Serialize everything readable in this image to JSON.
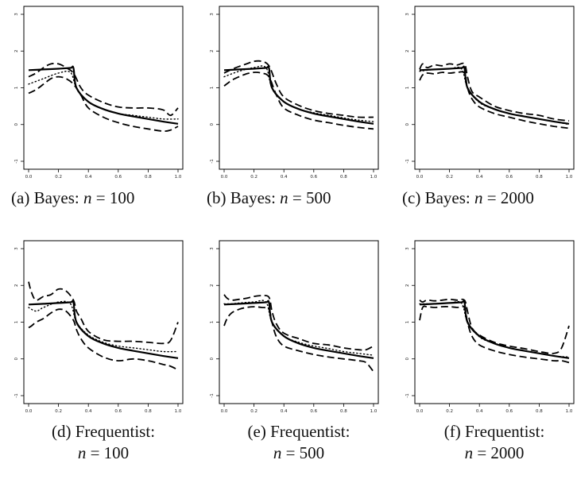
{
  "chart_data": [
    {
      "type": "line",
      "caption_label": "(a)",
      "caption_method": "Bayes:",
      "caption_n": "100",
      "xlim": [
        0,
        1
      ],
      "ylim": [
        -1,
        3
      ],
      "xticks": [
        "0.0",
        "0.2",
        "0.4",
        "0.6",
        "0.8",
        "1.0"
      ],
      "yticks": [
        "-1",
        "0",
        "1",
        "2",
        "3"
      ],
      "series": [
        {
          "style": "solid",
          "x": [
            0,
            0.1,
            0.2,
            0.28,
            0.3,
            0.32,
            0.4,
            0.5,
            0.6,
            0.7,
            0.8,
            0.9,
            1.0
          ],
          "y": [
            1.48,
            1.5,
            1.52,
            1.54,
            1.54,
            1.0,
            0.62,
            0.42,
            0.3,
            0.22,
            0.15,
            0.08,
            0.02
          ]
        },
        {
          "style": "dotted",
          "x": [
            0,
            0.1,
            0.2,
            0.28,
            0.32,
            0.4,
            0.5,
            0.6,
            0.7,
            0.8,
            0.9,
            1.0
          ],
          "y": [
            1.1,
            1.25,
            1.4,
            1.42,
            1.0,
            0.62,
            0.42,
            0.3,
            0.25,
            0.2,
            0.15,
            0.15
          ]
        },
        {
          "style": "dashed",
          "x": [
            0,
            0.05,
            0.1,
            0.15,
            0.2,
            0.25,
            0.3,
            0.35,
            0.4,
            0.5,
            0.6,
            0.7,
            0.8,
            0.9,
            0.95,
            1.0
          ],
          "y": [
            1.3,
            1.4,
            1.55,
            1.65,
            1.65,
            1.55,
            1.4,
            1.0,
            0.8,
            0.6,
            0.48,
            0.45,
            0.45,
            0.4,
            0.25,
            0.45
          ]
        },
        {
          "style": "dashed",
          "x": [
            0,
            0.05,
            0.1,
            0.15,
            0.2,
            0.25,
            0.3,
            0.35,
            0.4,
            0.5,
            0.6,
            0.7,
            0.8,
            0.9,
            0.95,
            1.0
          ],
          "y": [
            0.85,
            0.95,
            1.1,
            1.25,
            1.3,
            1.25,
            1.1,
            0.8,
            0.45,
            0.2,
            0.05,
            -0.05,
            -0.12,
            -0.18,
            -0.15,
            -0.05
          ]
        }
      ]
    },
    {
      "type": "line",
      "caption_label": "(b)",
      "caption_method": "Bayes:",
      "caption_n": "500",
      "xlim": [
        0,
        1
      ],
      "ylim": [
        -1,
        3
      ],
      "xticks": [
        "0.0",
        "0.2",
        "0.4",
        "0.6",
        "0.8",
        "1.0"
      ],
      "yticks": [
        "-1",
        "0",
        "1",
        "2",
        "3"
      ],
      "series": [
        {
          "style": "solid",
          "x": [
            0,
            0.1,
            0.2,
            0.28,
            0.3,
            0.32,
            0.4,
            0.5,
            0.6,
            0.7,
            0.8,
            0.9,
            1.0
          ],
          "y": [
            1.48,
            1.5,
            1.52,
            1.54,
            1.54,
            1.0,
            0.62,
            0.42,
            0.3,
            0.22,
            0.15,
            0.08,
            0.02
          ]
        },
        {
          "style": "dotted",
          "x": [
            0,
            0.1,
            0.2,
            0.28,
            0.32,
            0.4,
            0.5,
            0.6,
            0.7,
            0.8,
            0.9,
            1.0
          ],
          "y": [
            1.3,
            1.45,
            1.55,
            1.55,
            1.0,
            0.62,
            0.42,
            0.32,
            0.25,
            0.18,
            0.12,
            0.08
          ]
        },
        {
          "style": "dashed",
          "x": [
            0,
            0.05,
            0.1,
            0.15,
            0.2,
            0.25,
            0.3,
            0.35,
            0.4,
            0.5,
            0.6,
            0.7,
            0.8,
            0.9,
            1.0
          ],
          "y": [
            1.4,
            1.5,
            1.58,
            1.65,
            1.72,
            1.72,
            1.6,
            1.1,
            0.75,
            0.52,
            0.38,
            0.3,
            0.25,
            0.2,
            0.2
          ]
        },
        {
          "style": "dashed",
          "x": [
            0,
            0.05,
            0.1,
            0.15,
            0.2,
            0.25,
            0.3,
            0.35,
            0.4,
            0.5,
            0.6,
            0.7,
            0.8,
            0.9,
            1.0
          ],
          "y": [
            1.05,
            1.2,
            1.3,
            1.38,
            1.42,
            1.4,
            1.3,
            0.8,
            0.45,
            0.25,
            0.12,
            0.05,
            -0.02,
            -0.08,
            -0.12
          ]
        }
      ]
    },
    {
      "type": "line",
      "caption_label": "(c)",
      "caption_method": "Bayes:",
      "caption_n": "2000",
      "xlim": [
        0,
        1
      ],
      "ylim": [
        -1,
        3
      ],
      "xticks": [
        "0.0",
        "0.2",
        "0.4",
        "0.6",
        "0.8",
        "1.0"
      ],
      "yticks": [
        "-1",
        "0",
        "1",
        "2",
        "3"
      ],
      "series": [
        {
          "style": "solid",
          "x": [
            0,
            0.1,
            0.2,
            0.28,
            0.3,
            0.32,
            0.4,
            0.5,
            0.6,
            0.7,
            0.8,
            0.9,
            1.0
          ],
          "y": [
            1.48,
            1.5,
            1.52,
            1.54,
            1.54,
            1.0,
            0.62,
            0.42,
            0.3,
            0.22,
            0.15,
            0.08,
            0.02
          ]
        },
        {
          "style": "dotted",
          "x": [
            0,
            0.1,
            0.2,
            0.28,
            0.32,
            0.4,
            0.5,
            0.6,
            0.7,
            0.8,
            0.9,
            1.0
          ],
          "y": [
            1.45,
            1.5,
            1.52,
            1.52,
            1.0,
            0.6,
            0.42,
            0.3,
            0.22,
            0.15,
            0.08,
            0.0
          ]
        },
        {
          "style": "dashed",
          "x": [
            0,
            0.02,
            0.05,
            0.1,
            0.15,
            0.2,
            0.25,
            0.3,
            0.32,
            0.35,
            0.4,
            0.5,
            0.6,
            0.7,
            0.8,
            0.9,
            1.0
          ],
          "y": [
            1.5,
            1.65,
            1.55,
            1.62,
            1.6,
            1.65,
            1.62,
            1.65,
            1.3,
            0.9,
            0.75,
            0.5,
            0.38,
            0.3,
            0.25,
            0.15,
            0.1
          ]
        },
        {
          "style": "dashed",
          "x": [
            0,
            0.02,
            0.05,
            0.1,
            0.15,
            0.2,
            0.25,
            0.3,
            0.32,
            0.35,
            0.4,
            0.5,
            0.6,
            0.7,
            0.8,
            0.9,
            1.0
          ],
          "y": [
            1.2,
            1.35,
            1.4,
            1.38,
            1.42,
            1.4,
            1.42,
            1.4,
            1.0,
            0.7,
            0.48,
            0.3,
            0.2,
            0.1,
            0.02,
            -0.05,
            -0.1
          ]
        }
      ]
    },
    {
      "type": "line",
      "caption_label": "(d)",
      "caption_method": "Frequentist:",
      "caption_n": "100",
      "xlim": [
        0,
        1
      ],
      "ylim": [
        -1,
        3
      ],
      "xticks": [
        "0.0",
        "0.2",
        "0.4",
        "0.6",
        "0.8",
        "1.0"
      ],
      "yticks": [
        "-1",
        "0",
        "1",
        "2",
        "3"
      ],
      "series": [
        {
          "style": "solid",
          "x": [
            0,
            0.1,
            0.2,
            0.28,
            0.3,
            0.32,
            0.4,
            0.5,
            0.6,
            0.7,
            0.8,
            0.9,
            1.0
          ],
          "y": [
            1.48,
            1.5,
            1.52,
            1.54,
            1.54,
            1.0,
            0.62,
            0.42,
            0.3,
            0.22,
            0.15,
            0.08,
            0.02
          ]
        },
        {
          "style": "dotted",
          "x": [
            0,
            0.05,
            0.1,
            0.2,
            0.28,
            0.32,
            0.4,
            0.5,
            0.6,
            0.7,
            0.8,
            0.9,
            1.0
          ],
          "y": [
            1.4,
            1.3,
            1.4,
            1.55,
            1.5,
            1.0,
            0.65,
            0.45,
            0.35,
            0.3,
            0.25,
            0.2,
            0.2
          ]
        },
        {
          "style": "dashed",
          "x": [
            0,
            0.02,
            0.05,
            0.1,
            0.15,
            0.2,
            0.25,
            0.3,
            0.32,
            0.35,
            0.4,
            0.5,
            0.6,
            0.7,
            0.8,
            0.9,
            0.95,
            1.0
          ],
          "y": [
            2.1,
            1.8,
            1.6,
            1.7,
            1.75,
            1.9,
            1.85,
            1.6,
            1.3,
            1.1,
            0.75,
            0.52,
            0.48,
            0.48,
            0.45,
            0.42,
            0.5,
            1.0
          ]
        },
        {
          "style": "dashed",
          "x": [
            0,
            0.02,
            0.05,
            0.1,
            0.15,
            0.2,
            0.25,
            0.3,
            0.32,
            0.35,
            0.4,
            0.5,
            0.6,
            0.7,
            0.8,
            0.9,
            0.95,
            1.0
          ],
          "y": [
            0.85,
            0.9,
            1.0,
            1.1,
            1.25,
            1.35,
            1.3,
            1.05,
            0.8,
            0.55,
            0.3,
            0.05,
            -0.05,
            0.0,
            -0.05,
            -0.15,
            -0.2,
            -0.3
          ]
        }
      ]
    },
    {
      "type": "line",
      "caption_label": "(e)",
      "caption_method": "Frequentist:",
      "caption_n": "500",
      "xlim": [
        0,
        1
      ],
      "ylim": [
        -1,
        3
      ],
      "xticks": [
        "0.0",
        "0.2",
        "0.4",
        "0.6",
        "0.8",
        "1.0"
      ],
      "yticks": [
        "-1",
        "0",
        "1",
        "2",
        "3"
      ],
      "series": [
        {
          "style": "solid",
          "x": [
            0,
            0.1,
            0.2,
            0.28,
            0.3,
            0.32,
            0.4,
            0.5,
            0.6,
            0.7,
            0.8,
            0.9,
            1.0
          ],
          "y": [
            1.48,
            1.5,
            1.52,
            1.54,
            1.54,
            1.0,
            0.62,
            0.42,
            0.3,
            0.22,
            0.15,
            0.08,
            0.02
          ]
        },
        {
          "style": "dotted",
          "x": [
            0,
            0.05,
            0.1,
            0.2,
            0.28,
            0.32,
            0.4,
            0.5,
            0.6,
            0.7,
            0.8,
            0.9,
            1.0
          ],
          "y": [
            1.5,
            1.5,
            1.52,
            1.55,
            1.55,
            1.0,
            0.62,
            0.45,
            0.35,
            0.28,
            0.2,
            0.15,
            0.1
          ]
        },
        {
          "style": "dashed",
          "x": [
            0,
            0.02,
            0.05,
            0.1,
            0.15,
            0.2,
            0.25,
            0.3,
            0.32,
            0.35,
            0.4,
            0.5,
            0.6,
            0.7,
            0.8,
            0.9,
            0.95,
            1.0
          ],
          "y": [
            1.75,
            1.65,
            1.6,
            1.62,
            1.65,
            1.7,
            1.72,
            1.68,
            1.3,
            0.95,
            0.7,
            0.55,
            0.42,
            0.38,
            0.3,
            0.25,
            0.25,
            0.35
          ]
        },
        {
          "style": "dashed",
          "x": [
            0,
            0.02,
            0.05,
            0.1,
            0.15,
            0.2,
            0.25,
            0.3,
            0.32,
            0.35,
            0.4,
            0.5,
            0.6,
            0.7,
            0.8,
            0.9,
            0.95,
            1.0
          ],
          "y": [
            0.9,
            1.1,
            1.25,
            1.35,
            1.4,
            1.42,
            1.4,
            1.35,
            1.0,
            0.6,
            0.35,
            0.22,
            0.12,
            0.05,
            0.0,
            -0.05,
            -0.1,
            -0.35
          ]
        }
      ]
    },
    {
      "type": "line",
      "caption_label": "(f)",
      "caption_method": "Frequentist:",
      "caption_n": "2000",
      "xlim": [
        0,
        1
      ],
      "ylim": [
        -1,
        3
      ],
      "xticks": [
        "0.0",
        "0.2",
        "0.4",
        "0.6",
        "0.8",
        "1.0"
      ],
      "yticks": [
        "-1",
        "0",
        "1",
        "2",
        "3"
      ],
      "series": [
        {
          "style": "solid",
          "x": [
            0,
            0.1,
            0.2,
            0.28,
            0.3,
            0.32,
            0.4,
            0.5,
            0.6,
            0.7,
            0.8,
            0.9,
            1.0
          ],
          "y": [
            1.48,
            1.5,
            1.52,
            1.54,
            1.54,
            1.0,
            0.62,
            0.42,
            0.3,
            0.22,
            0.15,
            0.08,
            0.02
          ]
        },
        {
          "style": "dotted",
          "x": [
            0,
            0.05,
            0.1,
            0.2,
            0.28,
            0.32,
            0.4,
            0.5,
            0.6,
            0.7,
            0.8,
            0.9,
            1.0
          ],
          "y": [
            1.5,
            1.5,
            1.5,
            1.52,
            1.52,
            1.0,
            0.6,
            0.42,
            0.3,
            0.22,
            0.15,
            0.08,
            0.05
          ]
        },
        {
          "style": "dashed",
          "x": [
            0,
            0.02,
            0.05,
            0.1,
            0.15,
            0.2,
            0.25,
            0.3,
            0.32,
            0.35,
            0.4,
            0.5,
            0.6,
            0.7,
            0.8,
            0.9,
            0.95,
            1.0
          ],
          "y": [
            1.6,
            1.55,
            1.6,
            1.58,
            1.6,
            1.62,
            1.6,
            1.6,
            1.3,
            0.85,
            0.65,
            0.45,
            0.35,
            0.28,
            0.2,
            0.15,
            0.3,
            0.9
          ]
        },
        {
          "style": "dashed",
          "x": [
            0,
            0.02,
            0.05,
            0.1,
            0.15,
            0.2,
            0.25,
            0.3,
            0.32,
            0.35,
            0.4,
            0.5,
            0.6,
            0.7,
            0.8,
            0.9,
            0.95,
            1.0
          ],
          "y": [
            1.05,
            1.4,
            1.42,
            1.4,
            1.42,
            1.42,
            1.4,
            1.4,
            1.0,
            0.62,
            0.38,
            0.22,
            0.12,
            0.05,
            0.0,
            -0.05,
            -0.05,
            -0.1
          ]
        }
      ]
    }
  ]
}
